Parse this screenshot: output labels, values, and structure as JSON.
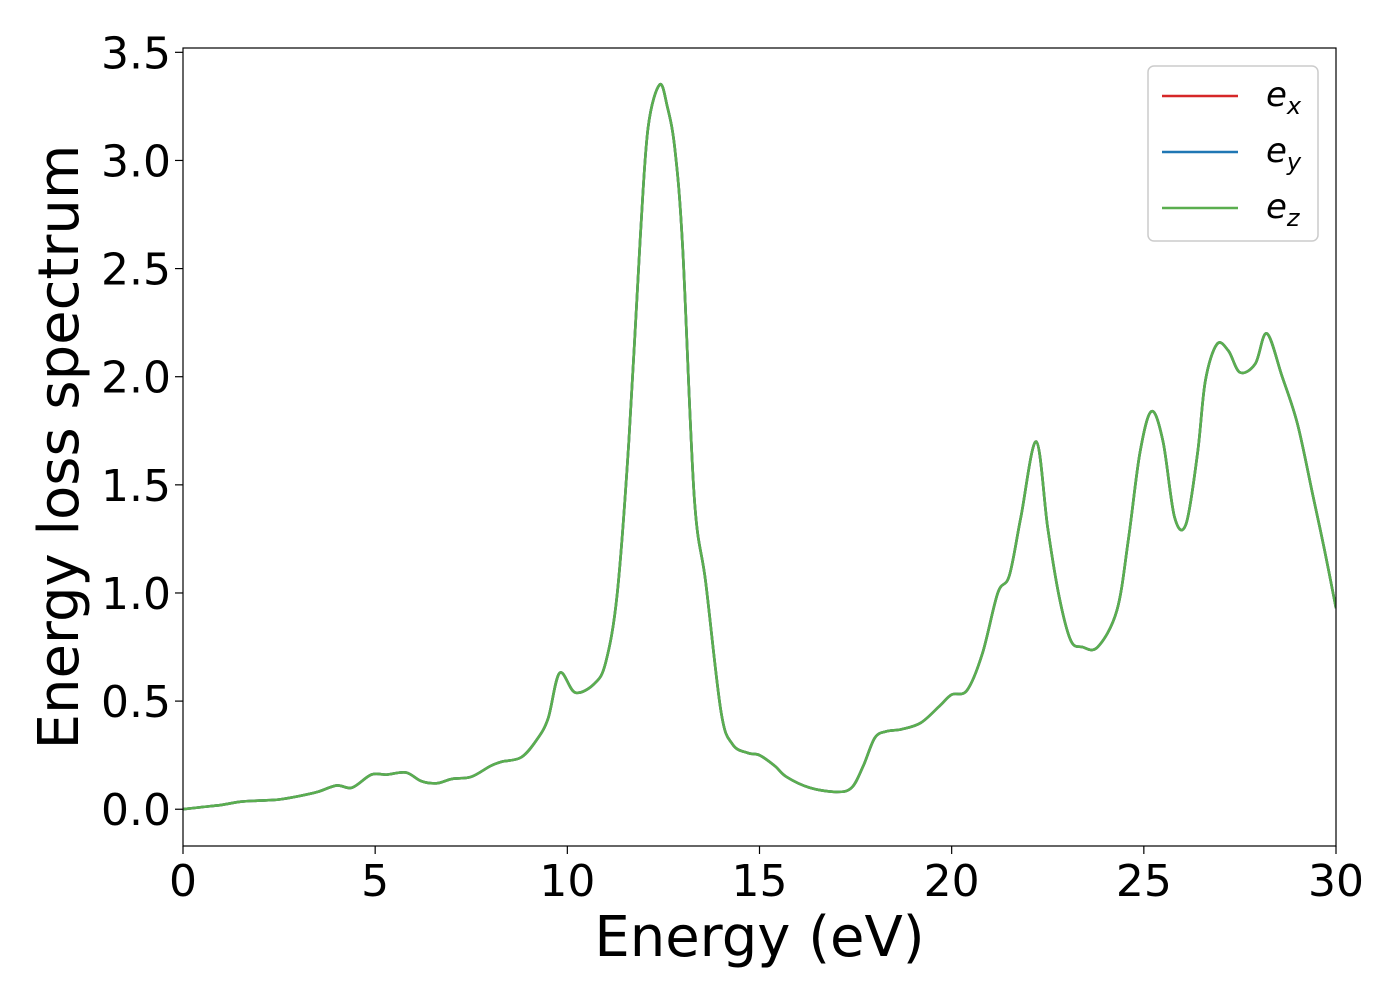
{
  "chart_data": {
    "type": "line",
    "xlabel": "Energy (eV)",
    "ylabel": "Energy loss spectrum",
    "xlim": [
      0,
      30
    ],
    "ylim": [
      -0.17,
      3.52
    ],
    "x_ticks": [
      0,
      5,
      10,
      15,
      20,
      25,
      30
    ],
    "x_tick_labels": [
      "0",
      "5",
      "10",
      "15",
      "20",
      "25",
      "30"
    ],
    "y_ticks": [
      0.0,
      0.5,
      1.0,
      1.5,
      2.0,
      2.5,
      3.0,
      3.5
    ],
    "y_tick_labels": [
      "0.0",
      "0.5",
      "1.0",
      "1.5",
      "2.0",
      "2.5",
      "3.0",
      "3.5"
    ],
    "grid": false,
    "legend_position": "top-right",
    "x": [
      0,
      0.5,
      1,
      1.5,
      2,
      2.5,
      3,
      3.5,
      4,
      4.4,
      4.9,
      5.3,
      5.8,
      6.2,
      6.6,
      7,
      7.5,
      8,
      8.3,
      8.8,
      9.2,
      9.5,
      9.8,
      10.2,
      10.7,
      11,
      11.3,
      11.6,
      11.9,
      12.1,
      12.4,
      12.6,
      12.8,
      13,
      13.3,
      13.6,
      14,
      14.3,
      14.7,
      15,
      15.4,
      15.7,
      16.3,
      17,
      17.4,
      17.7,
      18,
      18.3,
      18.7,
      19.2,
      19.7,
      20,
      20.4,
      20.8,
      21.2,
      21.5,
      21.8,
      22.2,
      22.5,
      22.8,
      23.1,
      23.4,
      23.8,
      24.3,
      24.6,
      24.9,
      25.2,
      25.5,
      25.8,
      26.1,
      26.4,
      26.6,
      26.9,
      27.2,
      27.5,
      27.9,
      28.2,
      28.6,
      29,
      29.4,
      29.7,
      30
    ],
    "series": [
      {
        "name": "x",
        "color": "#d62728",
        "y": [
          0.0,
          0.01,
          0.02,
          0.035,
          0.04,
          0.045,
          0.06,
          0.08,
          0.11,
          0.1,
          0.16,
          0.16,
          0.17,
          0.13,
          0.12,
          0.14,
          0.15,
          0.2,
          0.22,
          0.24,
          0.32,
          0.42,
          0.63,
          0.54,
          0.58,
          0.68,
          1.0,
          1.7,
          2.65,
          3.15,
          3.35,
          3.25,
          3.05,
          2.6,
          1.45,
          1.05,
          0.45,
          0.3,
          0.26,
          0.25,
          0.2,
          0.15,
          0.1,
          0.08,
          0.1,
          0.2,
          0.33,
          0.36,
          0.37,
          0.4,
          0.48,
          0.53,
          0.55,
          0.72,
          1.0,
          1.08,
          1.35,
          1.7,
          1.3,
          0.98,
          0.78,
          0.75,
          0.75,
          0.92,
          1.25,
          1.65,
          1.84,
          1.7,
          1.35,
          1.32,
          1.65,
          1.98,
          2.15,
          2.12,
          2.02,
          2.06,
          2.2,
          2.0,
          1.78,
          1.45,
          1.2,
          0.93
        ]
      },
      {
        "name": "y",
        "color": "#1f77b4",
        "y": [
          0.0,
          0.01,
          0.02,
          0.035,
          0.04,
          0.045,
          0.06,
          0.08,
          0.11,
          0.1,
          0.16,
          0.16,
          0.17,
          0.13,
          0.12,
          0.14,
          0.15,
          0.2,
          0.22,
          0.24,
          0.32,
          0.42,
          0.63,
          0.54,
          0.58,
          0.68,
          1.0,
          1.7,
          2.65,
          3.15,
          3.35,
          3.25,
          3.05,
          2.6,
          1.45,
          1.05,
          0.45,
          0.3,
          0.26,
          0.25,
          0.2,
          0.15,
          0.1,
          0.08,
          0.1,
          0.2,
          0.33,
          0.36,
          0.37,
          0.4,
          0.48,
          0.53,
          0.55,
          0.72,
          1.0,
          1.08,
          1.35,
          1.7,
          1.3,
          0.98,
          0.78,
          0.75,
          0.75,
          0.92,
          1.25,
          1.65,
          1.84,
          1.7,
          1.35,
          1.32,
          1.65,
          1.98,
          2.15,
          2.12,
          2.02,
          2.06,
          2.2,
          2.0,
          1.78,
          1.45,
          1.2,
          0.93
        ]
      },
      {
        "name": "z",
        "color": "#5aae4f",
        "y": [
          0.0,
          0.01,
          0.02,
          0.035,
          0.04,
          0.045,
          0.06,
          0.08,
          0.11,
          0.1,
          0.16,
          0.16,
          0.17,
          0.13,
          0.12,
          0.14,
          0.15,
          0.2,
          0.22,
          0.24,
          0.32,
          0.42,
          0.63,
          0.54,
          0.58,
          0.68,
          1.0,
          1.7,
          2.65,
          3.15,
          3.35,
          3.25,
          3.05,
          2.6,
          1.45,
          1.05,
          0.45,
          0.3,
          0.26,
          0.25,
          0.2,
          0.15,
          0.1,
          0.08,
          0.1,
          0.2,
          0.33,
          0.36,
          0.37,
          0.4,
          0.48,
          0.53,
          0.55,
          0.72,
          1.0,
          1.08,
          1.35,
          1.7,
          1.3,
          0.98,
          0.78,
          0.75,
          0.75,
          0.92,
          1.25,
          1.65,
          1.84,
          1.7,
          1.35,
          1.32,
          1.65,
          1.98,
          2.15,
          2.12,
          2.02,
          2.06,
          2.2,
          2.0,
          1.78,
          1.45,
          1.2,
          0.93
        ]
      }
    ]
  }
}
